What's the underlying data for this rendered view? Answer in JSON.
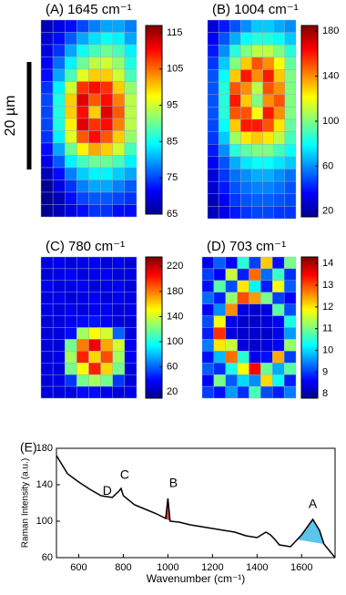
{
  "scale_bar_label": "20 µm",
  "chart_data": [
    {
      "type": "heatmap",
      "title": "(A) 1645 cm⁻¹",
      "clim": [
        65,
        117
      ],
      "cticks": [
        65,
        75,
        85,
        95,
        105,
        115
      ],
      "z": [
        [
          68,
          70,
          72,
          75,
          78,
          80,
          80,
          78
        ],
        [
          69,
          72,
          76,
          80,
          83,
          85,
          84,
          80
        ],
        [
          70,
          74,
          80,
          85,
          88,
          90,
          88,
          84
        ],
        [
          71,
          77,
          84,
          90,
          94,
          95,
          92,
          86
        ],
        [
          72,
          80,
          88,
          96,
          100,
          100,
          95,
          88
        ],
        [
          74,
          84,
          95,
          108,
          110,
          108,
          100,
          92
        ],
        [
          75,
          86,
          100,
          112,
          106,
          110,
          104,
          94
        ],
        [
          75,
          86,
          100,
          110,
          100,
          112,
          106,
          94
        ],
        [
          75,
          86,
          98,
          112,
          108,
          110,
          104,
          94
        ],
        [
          74,
          84,
          96,
          106,
          110,
          106,
          100,
          92
        ],
        [
          72,
          80,
          90,
          98,
          102,
          100,
          95,
          88
        ],
        [
          70,
          76,
          84,
          88,
          90,
          90,
          88,
          84
        ],
        [
          68,
          72,
          78,
          82,
          84,
          84,
          82,
          80
        ],
        [
          66,
          70,
          74,
          78,
          80,
          80,
          78,
          76
        ],
        [
          66,
          68,
          72,
          75,
          76,
          76,
          75,
          74
        ],
        [
          66,
          68,
          70,
          72,
          74,
          74,
          72,
          72
        ]
      ]
    },
    {
      "type": "heatmap",
      "title": "(B) 1004 cm⁻¹",
      "clim": [
        15,
        185
      ],
      "cticks": [
        20,
        60,
        100,
        140,
        180
      ],
      "z": [
        [
          30,
          40,
          50,
          60,
          70,
          70,
          65,
          60
        ],
        [
          35,
          50,
          65,
          80,
          85,
          85,
          80,
          70
        ],
        [
          40,
          60,
          85,
          100,
          110,
          110,
          100,
          85
        ],
        [
          45,
          70,
          100,
          130,
          150,
          140,
          120,
          95
        ],
        [
          50,
          80,
          130,
          160,
          140,
          160,
          130,
          100
        ],
        [
          50,
          85,
          150,
          140,
          110,
          150,
          140,
          100
        ],
        [
          50,
          85,
          160,
          130,
          100,
          140,
          150,
          100
        ],
        [
          50,
          85,
          150,
          150,
          120,
          160,
          140,
          100
        ],
        [
          48,
          80,
          130,
          160,
          160,
          150,
          125,
          95
        ],
        [
          45,
          70,
          105,
          125,
          130,
          125,
          110,
          90
        ],
        [
          40,
          60,
          85,
          95,
          100,
          100,
          90,
          80
        ],
        [
          35,
          50,
          65,
          75,
          80,
          80,
          75,
          70
        ],
        [
          30,
          45,
          55,
          60,
          65,
          65,
          60,
          55
        ],
        [
          28,
          40,
          50,
          55,
          58,
          58,
          55,
          50
        ],
        [
          25,
          35,
          45,
          50,
          52,
          52,
          50,
          48
        ],
        [
          25,
          32,
          40,
          45,
          48,
          48,
          45,
          45
        ]
      ]
    },
    {
      "type": "heatmap",
      "title": "(C) 780 cm⁻¹",
      "clim": [
        10,
        235
      ],
      "cticks": [
        20,
        60,
        100,
        140,
        180,
        220
      ],
      "z": [
        [
          32,
          35,
          30,
          33,
          36,
          30,
          34,
          31
        ],
        [
          30,
          33,
          36,
          31,
          34,
          37,
          30,
          33
        ],
        [
          35,
          30,
          33,
          36,
          30,
          33,
          36,
          30
        ],
        [
          31,
          34,
          30,
          33,
          37,
          31,
          34,
          32
        ],
        [
          33,
          30,
          35,
          31,
          34,
          36,
          30,
          33
        ],
        [
          30,
          32,
          35,
          40,
          42,
          36,
          31,
          30
        ],
        [
          30,
          31,
          40,
          130,
          150,
          140,
          60,
          32
        ],
        [
          31,
          30,
          120,
          180,
          210,
          170,
          140,
          35
        ],
        [
          30,
          32,
          130,
          200,
          160,
          190,
          130,
          35
        ],
        [
          32,
          30,
          120,
          150,
          200,
          160,
          120,
          31
        ],
        [
          30,
          33,
          50,
          120,
          130,
          120,
          50,
          30
        ],
        [
          31,
          30,
          32,
          40,
          40,
          35,
          31,
          33
        ]
      ]
    },
    {
      "type": "heatmap",
      "title": "(D) 703 cm⁻¹",
      "clim": [
        7.8,
        14.3
      ],
      "cticks": [
        8,
        9,
        10,
        11,
        12,
        13,
        14
      ],
      "z": [
        [
          8.5,
          9.2,
          8.6,
          10.5,
          9.0,
          12.2,
          8.7,
          11.0
        ],
        [
          9.0,
          8.6,
          11.5,
          8.8,
          12.8,
          9.3,
          10.6,
          8.9
        ],
        [
          8.7,
          10.8,
          9.1,
          12.0,
          10.2,
          8.8,
          11.8,
          9.2
        ],
        [
          9.3,
          8.8,
          11.2,
          13.0,
          12.5,
          11.0,
          9.0,
          8.6
        ],
        [
          8.6,
          9.5,
          12.6,
          8.4,
          8.3,
          8.4,
          10.8,
          9.1
        ],
        [
          9.1,
          11.8,
          8.5,
          8.3,
          8.3,
          8.4,
          8.6,
          10.4
        ],
        [
          8.8,
          13.2,
          8.4,
          8.3,
          8.3,
          8.3,
          8.5,
          9.6
        ],
        [
          9.4,
          12.0,
          11.5,
          8.4,
          8.3,
          8.4,
          8.6,
          11.2
        ],
        [
          8.7,
          9.8,
          12.8,
          10.5,
          8.5,
          8.7,
          12.4,
          9.0
        ],
        [
          9.2,
          8.9,
          10.4,
          11.8,
          13.5,
          10.9,
          9.7,
          10.8
        ],
        [
          8.6,
          11.0,
          9.2,
          10.0,
          9.5,
          12.1,
          10.3,
          8.8
        ],
        [
          9.0,
          8.7,
          9.6,
          8.9,
          10.7,
          9.1,
          8.8,
          9.4
        ]
      ]
    },
    {
      "type": "line",
      "panel_label": "(E)",
      "xlabel": "Wavenumber (cm⁻¹)",
      "ylabel": "Raman Intensity (a.u.)",
      "color": "#000000",
      "x": [
        500,
        550,
        600,
        650,
        700,
        750,
        780,
        790,
        800,
        850,
        900,
        950,
        990,
        1000,
        1010,
        1050,
        1100,
        1150,
        1200,
        1250,
        1300,
        1350,
        1400,
        1440,
        1460,
        1480,
        1500,
        1550,
        1600,
        1650,
        1680,
        1700,
        1750
      ],
      "values": [
        172,
        152,
        143,
        135,
        128,
        126,
        133,
        136,
        128,
        118,
        113,
        108,
        103,
        125,
        100,
        99,
        96,
        94,
        92,
        90,
        88,
        84,
        82,
        88,
        85,
        80,
        74,
        72,
        85,
        102,
        90,
        75,
        60
      ],
      "xlim": [
        500,
        1750
      ],
      "ylim": [
        60,
        180
      ],
      "xticks": [
        600,
        800,
        1000,
        1200,
        1400,
        1600
      ],
      "yticks": [
        60,
        100,
        140,
        180
      ],
      "bands": [
        {
          "label": "A",
          "range": [
            1580,
            1700
          ],
          "color": "#3fb8e6"
        },
        {
          "label": "B",
          "range": [
            985,
            1010
          ],
          "color": "#d42020"
        },
        {
          "label": "C",
          "range": [
            785,
            800
          ],
          "color": "#e8a317"
        },
        {
          "label": "D",
          "range": [
            755,
            785
          ],
          "color": "#f5d327"
        }
      ]
    }
  ]
}
